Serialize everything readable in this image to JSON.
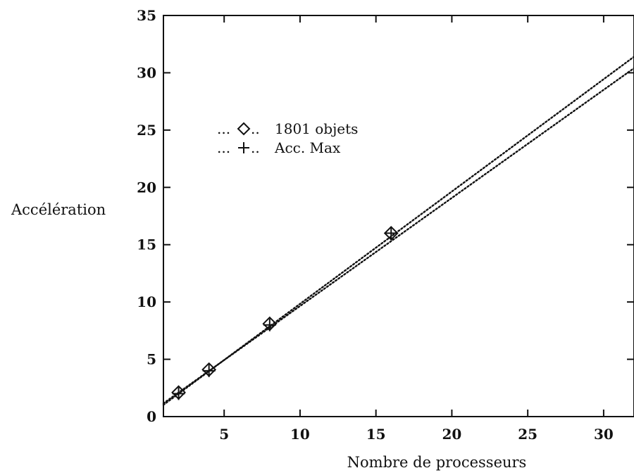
{
  "chart_data": {
    "type": "line",
    "title": "",
    "xlabel": "Nombre de processeurs",
    "ylabel": "Accélération",
    "xlim": [
      1,
      32
    ],
    "ylim": [
      0,
      35
    ],
    "xticks": [
      5,
      10,
      15,
      20,
      25,
      30
    ],
    "yticks": [
      0,
      5,
      10,
      15,
      20,
      25,
      30,
      35
    ],
    "grid": false,
    "legend_position": "top-left",
    "series": [
      {
        "name": "1801 objets",
        "legend_prefix": "...",
        "legend_suffix": "..",
        "marker": "diamond",
        "line_style": "dotted",
        "x": [
          2,
          4,
          8,
          16
        ],
        "y": [
          2.1,
          4.1,
          8.1,
          16.0
        ],
        "fit_endpoint": [
          32,
          30.4
        ]
      },
      {
        "name": "Acc. Max",
        "legend_prefix": "...",
        "legend_suffix": "..",
        "marker": "plus",
        "line_style": "dotted",
        "x": [
          2,
          4,
          8,
          16
        ],
        "y": [
          2,
          4,
          8,
          16
        ],
        "fit_endpoint": [
          32,
          31.4
        ]
      }
    ]
  }
}
